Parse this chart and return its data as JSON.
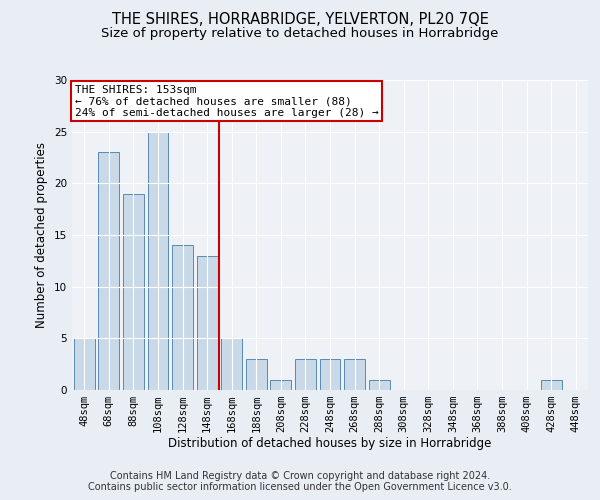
{
  "title": "THE SHIRES, HORRABRIDGE, YELVERTON, PL20 7QE",
  "subtitle": "Size of property relative to detached houses in Horrabridge",
  "xlabel": "Distribution of detached houses by size in Horrabridge",
  "ylabel": "Number of detached properties",
  "footer_line1": "Contains HM Land Registry data © Crown copyright and database right 2024.",
  "footer_line2": "Contains public sector information licensed under the Open Government Licence v3.0.",
  "annotation_line1": "THE SHIRES: 153sqm",
  "annotation_line2": "← 76% of detached houses are smaller (88)",
  "annotation_line3": "24% of semi-detached houses are larger (28) →",
  "bar_categories": [
    "48sqm",
    "68sqm",
    "88sqm",
    "108sqm",
    "128sqm",
    "148sqm",
    "168sqm",
    "188sqm",
    "208sqm",
    "228sqm",
    "248sqm",
    "268sqm",
    "288sqm",
    "308sqm",
    "328sqm",
    "348sqm",
    "368sqm",
    "388sqm",
    "408sqm",
    "428sqm",
    "448sqm"
  ],
  "bar_values": [
    5,
    23,
    19,
    25,
    14,
    13,
    5,
    3,
    1,
    3,
    3,
    3,
    1,
    0,
    0,
    0,
    0,
    0,
    0,
    1,
    0
  ],
  "bar_color": "#c9d9e8",
  "bar_edge_color": "#5a8ab0",
  "reference_line_x": 5.5,
  "reference_line_color": "#cc0000",
  "ylim": [
    0,
    30
  ],
  "yticks": [
    0,
    5,
    10,
    15,
    20,
    25,
    30
  ],
  "background_color": "#e8eef4",
  "plot_background_color": "#eef2f7",
  "title_fontsize": 10.5,
  "subtitle_fontsize": 9.5,
  "axis_label_fontsize": 8.5,
  "tick_fontsize": 7.5,
  "footer_fontsize": 7,
  "annotation_fontsize": 8
}
